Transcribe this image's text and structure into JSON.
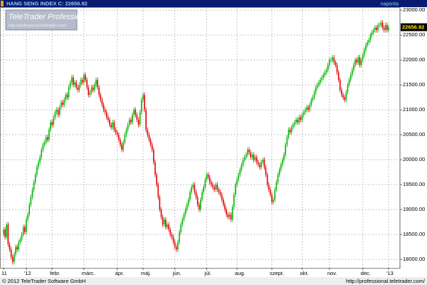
{
  "chart_data": {
    "type": "candlestick",
    "title": "HANG SENG INDEX C: 22656.92",
    "period": "naponta",
    "up_color": "#00b400",
    "down_color": "#e00000",
    "grid": true,
    "ylim": [
      17830,
      23060
    ],
    "yticks": [
      {
        "value": 18000,
        "label": "18000.00"
      },
      {
        "value": 18500,
        "label": "18500.00"
      },
      {
        "value": 19000,
        "label": "19000.00"
      },
      {
        "value": 19500,
        "label": "19500.00"
      },
      {
        "value": 20000,
        "label": "20000.00"
      },
      {
        "value": 20500,
        "label": "20500.00"
      },
      {
        "value": 21000,
        "label": "21000.00"
      },
      {
        "value": 21500,
        "label": "21500.00"
      },
      {
        "value": 22000,
        "label": "22000.00"
      },
      {
        "value": 22500,
        "label": "22500.00"
      },
      {
        "value": 23000,
        "label": "23000.00"
      }
    ],
    "categories": [
      "11",
      null,
      null,
      null,
      null,
      null,
      null,
      null,
      null,
      null,
      null,
      null,
      null,
      null,
      null,
      "'12",
      null,
      null,
      null,
      null,
      null,
      null,
      null,
      null,
      null,
      null,
      null,
      null,
      null,
      null,
      null,
      null,
      "febr.",
      null,
      null,
      null,
      null,
      null,
      null,
      null,
      null,
      null,
      null,
      null,
      null,
      null,
      null,
      null,
      null,
      null,
      null,
      null,
      null,
      "márc.",
      null,
      null,
      null,
      null,
      null,
      null,
      null,
      null,
      null,
      null,
      null,
      null,
      null,
      null,
      null,
      null,
      null,
      null,
      null,
      null,
      null,
      "ápr.",
      null,
      null,
      null,
      null,
      null,
      null,
      null,
      null,
      null,
      null,
      null,
      null,
      null,
      null,
      null,
      null,
      "máj.",
      null,
      null,
      null,
      null,
      null,
      null,
      null,
      null,
      null,
      null,
      null,
      null,
      null,
      null,
      null,
      null,
      null,
      null,
      null,
      null,
      "jún.",
      null,
      null,
      null,
      null,
      null,
      null,
      null,
      null,
      null,
      null,
      null,
      null,
      null,
      null,
      null,
      null,
      null,
      null,
      null,
      null,
      "júl.",
      null,
      null,
      null,
      null,
      null,
      null,
      null,
      null,
      null,
      null,
      null,
      null,
      null,
      null,
      null,
      null,
      null,
      null,
      null,
      "aug.",
      null,
      null,
      null,
      null,
      null,
      null,
      null,
      null,
      null,
      null,
      null,
      null,
      null,
      null,
      null,
      null,
      null,
      null,
      null,
      null,
      null,
      null,
      "szept.",
      null,
      null,
      null,
      null,
      null,
      null,
      null,
      null,
      null,
      null,
      null,
      null,
      null,
      null,
      null,
      null,
      null,
      null,
      null,
      "okt.",
      null,
      null,
      null,
      null,
      null,
      null,
      null,
      null,
      null,
      null,
      null,
      null,
      null,
      null,
      null,
      null,
      null,
      "nov.",
      null,
      null,
      null,
      null,
      null,
      null,
      null,
      null,
      null,
      null,
      null,
      null,
      null,
      null,
      null,
      null,
      null,
      null,
      null,
      null,
      null,
      "dec.",
      null,
      null,
      null,
      null,
      null,
      null,
      null,
      null,
      null,
      null,
      null,
      null,
      null,
      null,
      null,
      null,
      "'13"
    ],
    "open": [
      18500,
      18600,
      18450,
      18700,
      18300,
      18200,
      18050,
      17950,
      18100,
      18250,
      18200,
      18350,
      18400,
      18500,
      18650,
      18550,
      18800,
      18900,
      19100,
      19250,
      19400,
      19550,
      19700,
      19850,
      19950,
      20050,
      20200,
      20300,
      20350,
      20450,
      20400,
      20600,
      20750,
      20700,
      20850,
      20950,
      21000,
      20900,
      21050,
      21150,
      21100,
      21200,
      21300,
      21250,
      21450,
      21550,
      21650,
      21500,
      21550,
      21450,
      21400,
      21500,
      21600,
      21550,
      21700,
      21600,
      21450,
      21300,
      21350,
      21450,
      21400,
      21500,
      21600,
      21450,
      21300,
      21200,
      21100,
      21000,
      20950,
      20850,
      20800,
      20700,
      20650,
      20750,
      20600,
      20550,
      20500,
      20400,
      20300,
      20200,
      20350,
      20500,
      20600,
      20700,
      20800,
      20750,
      20900,
      21000,
      20900,
      20800,
      20700,
      20950,
      21200,
      21300,
      21000,
      20600,
      20500,
      20400,
      20300,
      20200,
      19950,
      19700,
      19500,
      19250,
      19000,
      18850,
      18700,
      18800,
      18650,
      18700,
      18600,
      18500,
      18450,
      18350,
      18250,
      18200,
      18350,
      18550,
      18700,
      18800,
      18900,
      19000,
      19100,
      19200,
      19350,
      19450,
      19500,
      19350,
      19250,
      19100,
      19000,
      19200,
      19350,
      19450,
      19600,
      19700,
      19650,
      19550,
      19500,
      19450,
      19400,
      19500,
      19400,
      19350,
      19300,
      19200,
      19100,
      19000,
      18900,
      18850,
      18900,
      18800,
      19050,
      19300,
      19500,
      19600,
      19700,
      19800,
      19900,
      20000,
      20050,
      20100,
      20200,
      20150,
      20050,
      20100,
      20000,
      20050,
      19950,
      19900,
      19850,
      19950,
      20000,
      19850,
      19700,
      19500,
      19400,
      19300,
      19150,
      19200,
      19400,
      19550,
      19700,
      19800,
      19900,
      20000,
      20100,
      20300,
      20450,
      20600,
      20550,
      20650,
      20700,
      20750,
      20800,
      20750,
      20850,
      20800,
      20900,
      20950,
      21000,
      21050,
      21000,
      21100,
      21200,
      21250,
      21350,
      21450,
      21500,
      21550,
      21600,
      21650,
      21700,
      21750,
      21800,
      21900,
      22000,
      22000,
      22050,
      21950,
      21900,
      21750,
      21600,
      21400,
      21300,
      21250,
      21200,
      21350,
      21500,
      21600,
      21700,
      21800,
      21900,
      22000,
      21950,
      22050,
      21900,
      22000,
      22100,
      22200,
      22300,
      22350,
      22400,
      22500,
      22550,
      22600,
      22650,
      22600,
      22700,
      22700,
      22750,
      22650,
      22600,
      22700,
      22600
    ],
    "high": [
      18650,
      18650,
      18750,
      18750,
      18350,
      18250,
      18100,
      18150,
      18300,
      18300,
      18400,
      18450,
      18550,
      18700,
      18700,
      18850,
      18950,
      19150,
      19300,
      19450,
      19600,
      19750,
      19900,
      20000,
      20100,
      20250,
      20350,
      20400,
      20500,
      20500,
      20650,
      20800,
      20800,
      20900,
      21000,
      21050,
      21050,
      21100,
      21200,
      21200,
      21250,
      21350,
      21350,
      21500,
      21600,
      21700,
      21700,
      21600,
      21600,
      21500,
      21550,
      21650,
      21650,
      21750,
      21750,
      21650,
      21500,
      21400,
      21500,
      21500,
      21550,
      21650,
      21650,
      21500,
      21350,
      21250,
      21150,
      21050,
      21000,
      20900,
      20850,
      20750,
      20800,
      20800,
      20650,
      20600,
      20550,
      20450,
      20350,
      20400,
      20550,
      20650,
      20750,
      20850,
      20850,
      20950,
      21050,
      21050,
      20950,
      20850,
      21000,
      21250,
      21350,
      21350,
      21050,
      20650,
      20550,
      20450,
      20350,
      20250,
      20000,
      19750,
      19550,
      19300,
      19050,
      18900,
      18850,
      18850,
      18750,
      18750,
      18650,
      18550,
      18500,
      18400,
      18300,
      18400,
      18600,
      18750,
      18850,
      18950,
      19050,
      19150,
      19250,
      19400,
      19500,
      19550,
      19550,
      19400,
      19300,
      19150,
      19250,
      19400,
      19500,
      19650,
      19750,
      19750,
      19700,
      19600,
      19550,
      19500,
      19550,
      19550,
      19450,
      19400,
      19350,
      19250,
      19150,
      19050,
      18950,
      18950,
      18950,
      19100,
      19350,
      19550,
      19650,
      19750,
      19850,
      19950,
      20050,
      20100,
      20150,
      20250,
      20250,
      20200,
      20150,
      20150,
      20100,
      20100,
      20000,
      19950,
      20000,
      20050,
      20050,
      19900,
      19750,
      19550,
      19450,
      19350,
      19250,
      19450,
      19600,
      19750,
      19850,
      19950,
      20050,
      20150,
      20350,
      20500,
      20650,
      20650,
      20700,
      20750,
      20800,
      20850,
      20850,
      20900,
      20900,
      20950,
      21000,
      21050,
      21100,
      21100,
      21150,
      21250,
      21300,
      21400,
      21500,
      21550,
      21600,
      21650,
      21700,
      21750,
      21800,
      21850,
      21950,
      22050,
      22050,
      22100,
      22100,
      22000,
      21950,
      21800,
      21650,
      21450,
      21350,
      21300,
      21400,
      21550,
      21650,
      21750,
      21850,
      21950,
      22050,
      22050,
      22100,
      22100,
      22050,
      22150,
      22250,
      22350,
      22400,
      22450,
      22550,
      22600,
      22650,
      22700,
      22700,
      22750,
      22750,
      22800,
      22800,
      22700,
      22750,
      22750,
      22710
    ],
    "low": [
      18450,
      18400,
      18400,
      18250,
      18150,
      18000,
      17900,
      17900,
      18050,
      18150,
      18150,
      18300,
      18350,
      18450,
      18500,
      18500,
      18750,
      18850,
      19050,
      19200,
      19350,
      19500,
      19650,
      19800,
      19900,
      20000,
      20150,
      20250,
      20300,
      20350,
      20350,
      20550,
      20650,
      20650,
      20800,
      20900,
      20850,
      20850,
      21000,
      21050,
      21050,
      21150,
      21200,
      21200,
      21400,
      21500,
      21450,
      21450,
      21400,
      21350,
      21350,
      21450,
      21500,
      21500,
      21550,
      21400,
      21250,
      21250,
      21300,
      21350,
      21350,
      21450,
      21400,
      21250,
      21150,
      21050,
      20950,
      20900,
      20800,
      20750,
      20650,
      20600,
      20600,
      20550,
      20500,
      20450,
      20350,
      20250,
      20150,
      20150,
      20300,
      20450,
      20550,
      20650,
      20700,
      20700,
      20850,
      20850,
      20750,
      20650,
      20650,
      20900,
      21150,
      20950,
      20550,
      20450,
      20350,
      20250,
      20150,
      19900,
      19650,
      19450,
      19200,
      18950,
      18800,
      18650,
      18650,
      18600,
      18600,
      18550,
      18450,
      18400,
      18300,
      18200,
      18150,
      18150,
      18300,
      18500,
      18650,
      18750,
      18850,
      18950,
      19050,
      19150,
      19300,
      19400,
      19300,
      19200,
      19050,
      18950,
      18950,
      19150,
      19300,
      19400,
      19550,
      19600,
      19500,
      19450,
      19400,
      19350,
      19350,
      19350,
      19300,
      19250,
      19150,
      19050,
      18950,
      18850,
      18800,
      18800,
      18750,
      18750,
      19000,
      19250,
      19450,
      19550,
      19650,
      19750,
      19850,
      19950,
      20000,
      20050,
      20100,
      20000,
      20000,
      19950,
      19950,
      19900,
      19850,
      19800,
      19800,
      19900,
      19800,
      19650,
      19450,
      19350,
      19250,
      19100,
      19100,
      19150,
      19350,
      19500,
      19650,
      19750,
      19850,
      19950,
      20050,
      20250,
      20400,
      20500,
      20500,
      20600,
      20650,
      20700,
      20700,
      20700,
      20750,
      20750,
      20850,
      20900,
      20950,
      20950,
      20950,
      21050,
      21150,
      21200,
      21300,
      21400,
      21450,
      21500,
      21550,
      21600,
      21650,
      21700,
      21750,
      21850,
      21950,
      21950,
      21900,
      21850,
      21700,
      21550,
      21350,
      21250,
      21200,
      21150,
      21150,
      21300,
      21450,
      21550,
      21650,
      21750,
      21850,
      21900,
      21900,
      21850,
      21850,
      21950,
      22050,
      22150,
      22250,
      22300,
      22350,
      22450,
      22500,
      22550,
      22550,
      22550,
      22650,
      22650,
      22600,
      22550,
      22550,
      22550,
      22550
    ],
    "close": [
      18600,
      18450,
      18700,
      18300,
      18200,
      18050,
      17950,
      18100,
      18250,
      18200,
      18350,
      18400,
      18500,
      18650,
      18550,
      18800,
      18900,
      19100,
      19250,
      19400,
      19550,
      19700,
      19850,
      19950,
      20050,
      20200,
      20300,
      20350,
      20450,
      20400,
      20600,
      20750,
      20700,
      20850,
      20950,
      21000,
      20900,
      21050,
      21150,
      21100,
      21200,
      21300,
      21250,
      21450,
      21550,
      21650,
      21500,
      21550,
      21450,
      21400,
      21500,
      21600,
      21550,
      21700,
      21600,
      21450,
      21300,
      21350,
      21450,
      21400,
      21500,
      21600,
      21450,
      21300,
      21200,
      21100,
      21000,
      20950,
      20850,
      20800,
      20700,
      20650,
      20750,
      20600,
      20550,
      20500,
      20400,
      20300,
      20200,
      20350,
      20500,
      20600,
      20700,
      20800,
      20750,
      20900,
      21000,
      20900,
      20800,
      20700,
      20950,
      21200,
      21300,
      21000,
      20600,
      20500,
      20400,
      20300,
      20200,
      19950,
      19700,
      19500,
      19250,
      19000,
      18850,
      18700,
      18800,
      18650,
      18700,
      18600,
      18500,
      18450,
      18350,
      18250,
      18200,
      18350,
      18550,
      18700,
      18800,
      18900,
      19000,
      19100,
      19200,
      19350,
      19450,
      19500,
      19350,
      19250,
      19100,
      19000,
      19200,
      19350,
      19450,
      19600,
      19700,
      19650,
      19550,
      19500,
      19450,
      19400,
      19500,
      19400,
      19350,
      19300,
      19200,
      19100,
      19000,
      18900,
      18850,
      18900,
      18800,
      19050,
      19300,
      19500,
      19600,
      19700,
      19800,
      19900,
      20000,
      20050,
      20100,
      20200,
      20150,
      20050,
      20100,
      20000,
      20050,
      19950,
      19900,
      19850,
      19950,
      20000,
      19850,
      19700,
      19500,
      19400,
      19300,
      19150,
      19200,
      19400,
      19550,
      19700,
      19800,
      19900,
      20000,
      20100,
      20300,
      20450,
      20600,
      20550,
      20650,
      20700,
      20750,
      20800,
      20750,
      20850,
      20800,
      20900,
      20950,
      21000,
      21050,
      21000,
      21100,
      21200,
      21250,
      21350,
      21450,
      21500,
      21550,
      21600,
      21650,
      21700,
      21750,
      21800,
      21900,
      22000,
      22000,
      22050,
      21950,
      21900,
      21750,
      21600,
      21400,
      21300,
      21250,
      21200,
      21350,
      21500,
      21600,
      21700,
      21800,
      21900,
      22000,
      21950,
      22050,
      21900,
      22000,
      22100,
      22200,
      22300,
      22350,
      22400,
      22500,
      22550,
      22600,
      22650,
      22600,
      22700,
      22700,
      22750,
      22650,
      22600,
      22700,
      22600,
      22656.92
    ]
  },
  "logo": {
    "brand": "TeleTrader Professional",
    "url": "http://professional.teletrader.com/"
  },
  "footer": {
    "copyright": "© 2012 TeleTrader Software GmbH",
    "url": "http://professional.teletrader.com/"
  }
}
